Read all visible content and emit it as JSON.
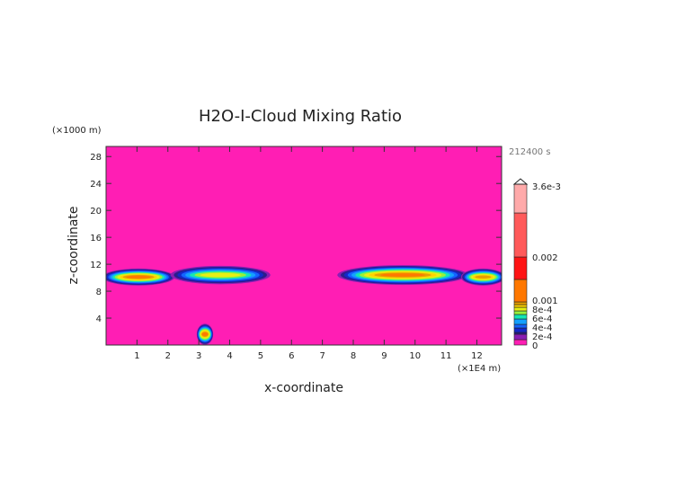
{
  "chart_data": {
    "type": "heatmap",
    "title": "H2O-I-Cloud Mixing Ratio",
    "xlabel": "x-coordinate",
    "ylabel": "z-coordinate",
    "x_unit": "(×1E4 m)",
    "y_unit": "(×1000 m)",
    "time_label": "212400 s",
    "xlim": [
      0,
      12.8
    ],
    "ylim": [
      0,
      29.5
    ],
    "x_ticks": [
      "1",
      "2",
      "3",
      "4",
      "5",
      "6",
      "7",
      "8",
      "9",
      "10",
      "11",
      "12"
    ],
    "y_ticks": [
      "4",
      "8",
      "12",
      "16",
      "20",
      "24",
      "28"
    ],
    "background_color": "#ff1eb4",
    "colorbar": {
      "labels": [
        {
          "text": "3.6e-3",
          "value": 0.0036
        },
        {
          "text": "0.002",
          "value": 0.002
        },
        {
          "text": "0.001",
          "value": 0.001
        },
        {
          "text": "8e-4",
          "value": 0.0008
        },
        {
          "text": "6e-4",
          "value": 0.0006
        },
        {
          "text": "4e-4",
          "value": 0.0004
        },
        {
          "text": "2e-4",
          "value": 0.0002
        },
        {
          "text": "0",
          "value": 0
        }
      ],
      "colors_bottom_to_top": [
        "#ff1eb4",
        "#8a1eb4",
        "#2a1e8c",
        "#1428c8",
        "#1464ff",
        "#14a0ff",
        "#14e6b4",
        "#96f03c",
        "#e6f014",
        "#ffd200",
        "#e6a000",
        "#ff7800",
        "#ff1414",
        "#ff5a5a",
        "#ffaaaa"
      ]
    },
    "features": [
      {
        "x0": 0.0,
        "x1": 2.1,
        "z": 10.1,
        "thick": 2.0,
        "peak_level": 11
      },
      {
        "x0": 2.2,
        "x1": 5.2,
        "z": 10.4,
        "thick": 2.2,
        "peak_level": 8
      },
      {
        "x0": 7.6,
        "x1": 11.6,
        "z": 10.4,
        "thick": 2.4,
        "peak_level": 11
      },
      {
        "x0": 11.6,
        "x1": 12.8,
        "z": 10.1,
        "thick": 2.0,
        "peak_level": 10
      },
      {
        "x0": 3.05,
        "x1": 3.35,
        "z": 1.6,
        "thick": 2.6,
        "peak_level": 11
      }
    ]
  }
}
